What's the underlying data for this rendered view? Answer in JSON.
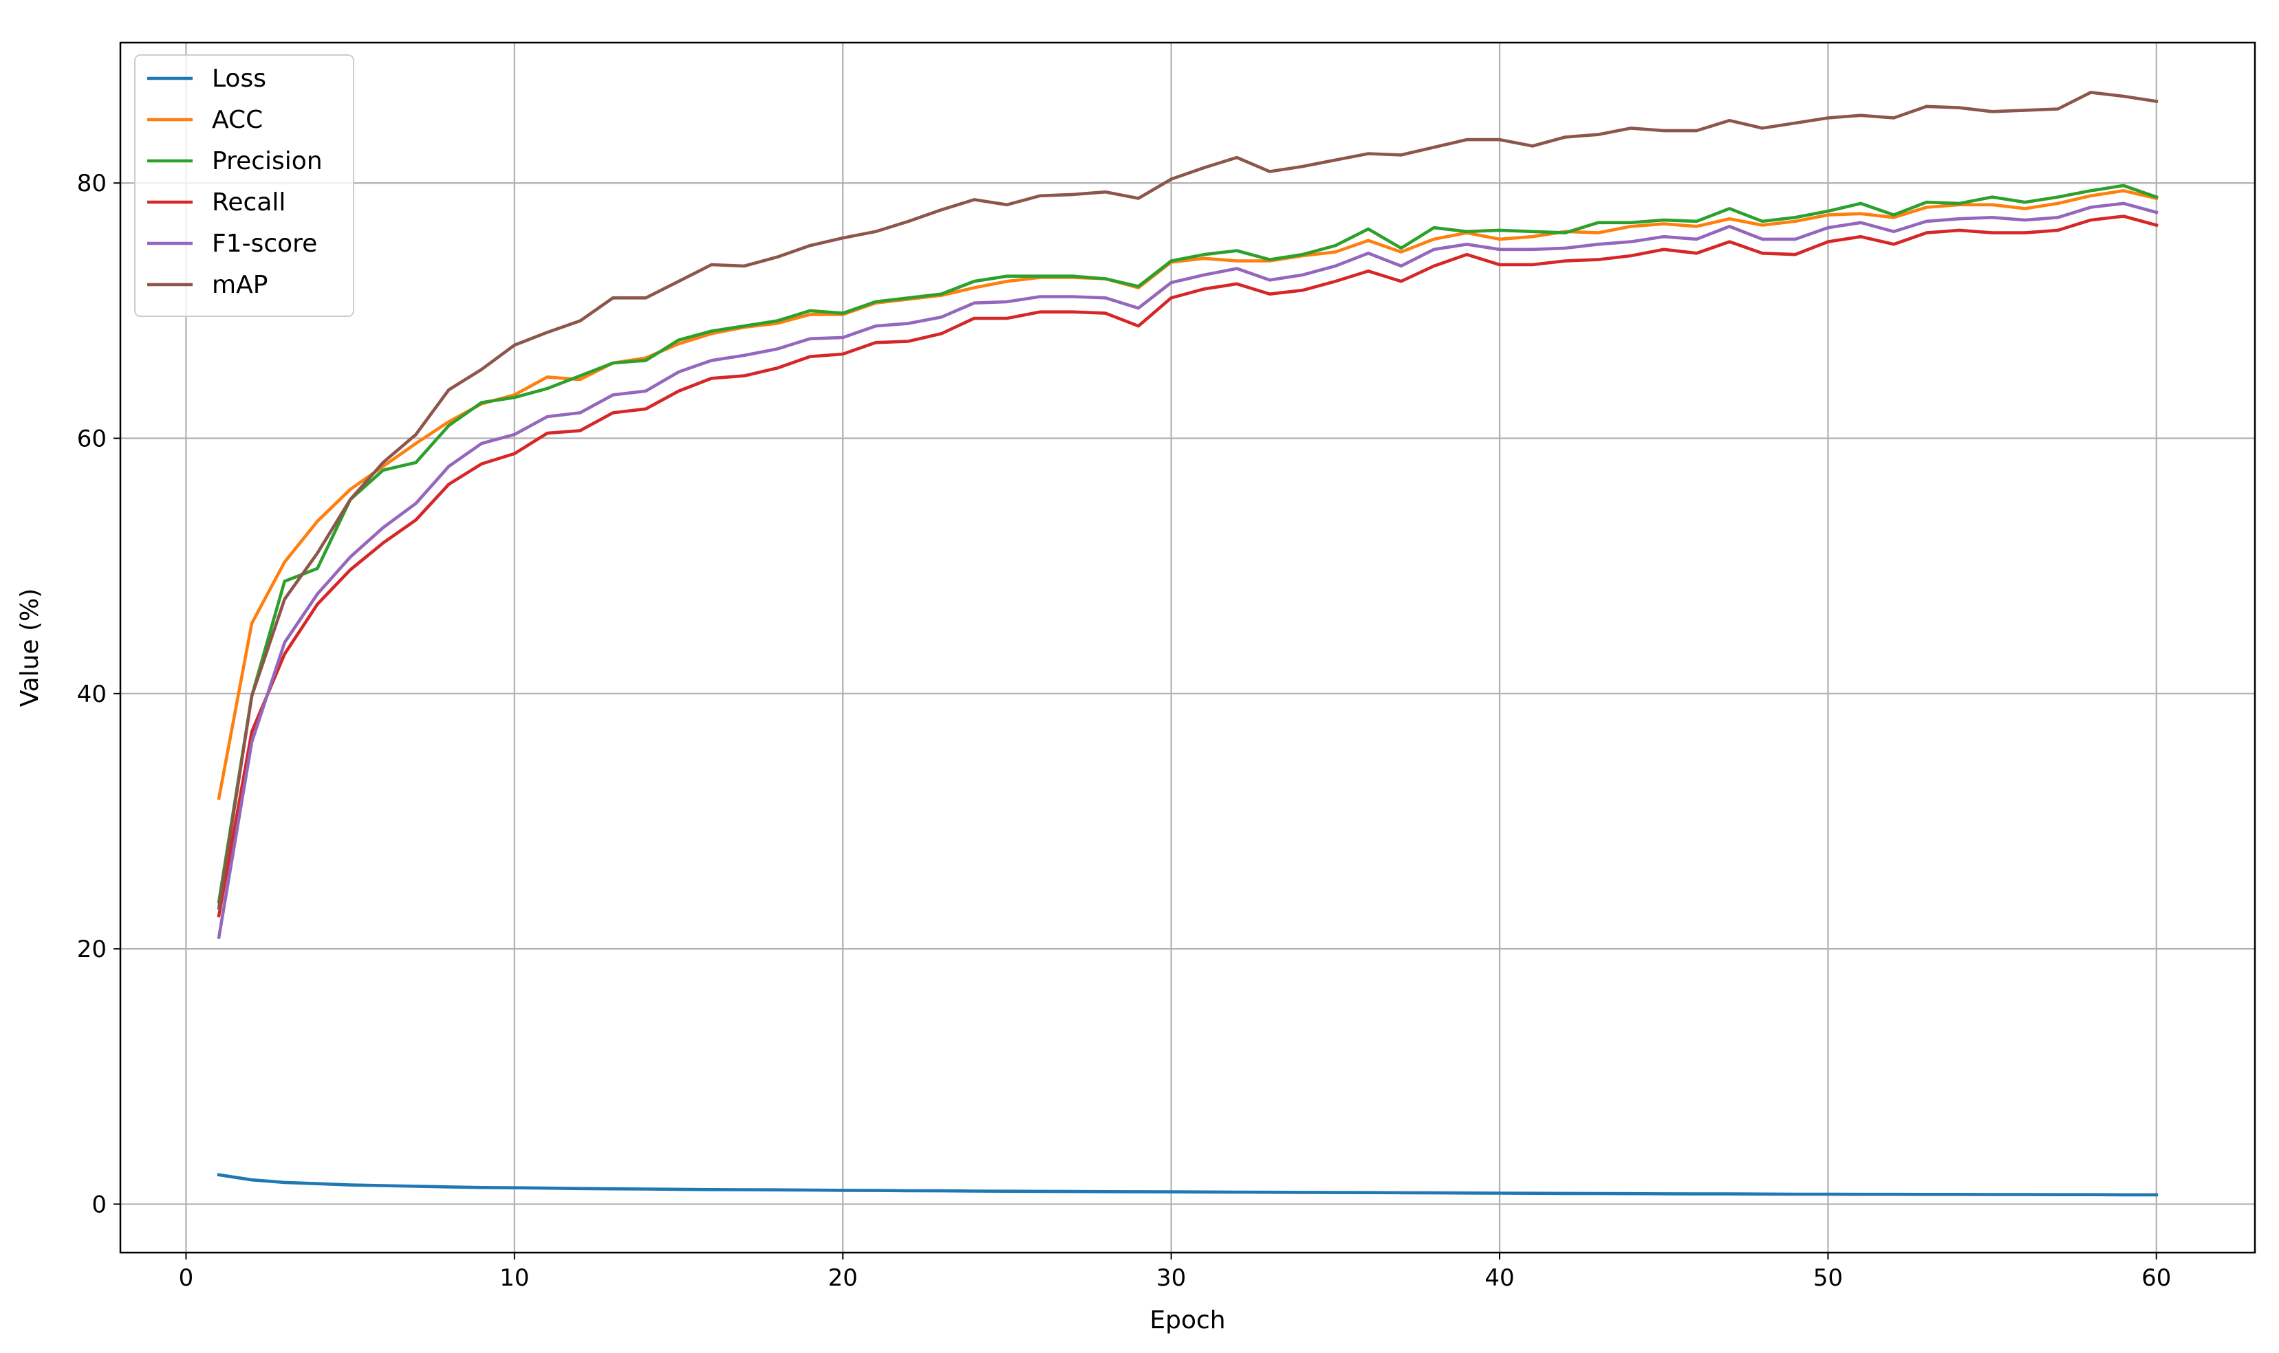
{
  "chart_data": {
    "type": "line",
    "xlabel": "Epoch",
    "ylabel": "Value (%)",
    "xlim": [
      -2,
      63
    ],
    "ylim": [
      -3.8,
      91
    ],
    "x_ticks": [
      0,
      10,
      20,
      30,
      40,
      50,
      60
    ],
    "y_ticks": [
      0,
      20,
      40,
      60,
      80
    ],
    "grid": true,
    "legend_position": "upper-left",
    "x": [
      1,
      2,
      3,
      4,
      5,
      6,
      7,
      8,
      9,
      10,
      11,
      12,
      13,
      14,
      15,
      16,
      17,
      18,
      19,
      20,
      21,
      22,
      23,
      24,
      25,
      26,
      27,
      28,
      29,
      30,
      31,
      32,
      33,
      34,
      35,
      36,
      37,
      38,
      39,
      40,
      41,
      42,
      43,
      44,
      45,
      46,
      47,
      48,
      49,
      50,
      51,
      52,
      53,
      54,
      55,
      56,
      57,
      58,
      59,
      60
    ],
    "series": [
      {
        "name": "Loss",
        "color": "#1f77b4",
        "values": [
          2.3,
          1.9,
          1.7,
          1.6,
          1.5,
          1.45,
          1.4,
          1.35,
          1.3,
          1.28,
          1.25,
          1.22,
          1.2,
          1.18,
          1.16,
          1.14,
          1.13,
          1.12,
          1.1,
          1.08,
          1.07,
          1.05,
          1.04,
          1.02,
          1.01,
          1.0,
          0.99,
          0.98,
          0.97,
          0.96,
          0.95,
          0.94,
          0.93,
          0.92,
          0.91,
          0.9,
          0.89,
          0.88,
          0.87,
          0.86,
          0.85,
          0.84,
          0.83,
          0.82,
          0.81,
          0.8,
          0.8,
          0.79,
          0.78,
          0.78,
          0.77,
          0.77,
          0.76,
          0.76,
          0.75,
          0.75,
          0.74,
          0.74,
          0.73,
          0.73
        ]
      },
      {
        "name": "ACC",
        "color": "#ff7f0e",
        "values": [
          31.8,
          45.5,
          50.3,
          53.5,
          56.0,
          57.8,
          59.6,
          61.3,
          62.7,
          63.4,
          64.8,
          64.6,
          65.9,
          66.3,
          67.4,
          68.2,
          68.7,
          69.0,
          69.7,
          69.7,
          70.6,
          70.9,
          71.2,
          71.8,
          72.3,
          72.6,
          72.6,
          72.5,
          71.8,
          73.8,
          74.1,
          73.9,
          73.9,
          74.3,
          74.6,
          75.5,
          74.6,
          75.6,
          76.1,
          75.6,
          75.8,
          76.2,
          76.1,
          76.6,
          76.8,
          76.6,
          77.2,
          76.7,
          77.0,
          77.5,
          77.6,
          77.3,
          78.1,
          78.3,
          78.3,
          78.0,
          78.4,
          79.0,
          79.4,
          78.8
        ]
      },
      {
        "name": "Precision",
        "color": "#2ca02c",
        "values": [
          23.7,
          39.8,
          48.8,
          49.8,
          55.2,
          57.5,
          58.1,
          61.0,
          62.8,
          63.2,
          63.9,
          64.9,
          65.9,
          66.1,
          67.7,
          68.4,
          68.8,
          69.2,
          70.0,
          69.8,
          70.7,
          71.0,
          71.3,
          72.3,
          72.7,
          72.7,
          72.7,
          72.5,
          71.9,
          73.9,
          74.4,
          74.7,
          74.0,
          74.4,
          75.1,
          76.4,
          74.9,
          76.5,
          76.2,
          76.3,
          76.2,
          76.1,
          76.9,
          76.9,
          77.1,
          77.0,
          78.0,
          77.0,
          77.3,
          77.8,
          78.4,
          77.5,
          78.5,
          78.4,
          78.9,
          78.5,
          78.9,
          79.4,
          79.8,
          78.9
        ]
      },
      {
        "name": "Recall",
        "color": "#d62728",
        "values": [
          22.6,
          37.0,
          43.1,
          47.0,
          49.7,
          51.8,
          53.6,
          56.4,
          58.0,
          58.8,
          60.4,
          60.6,
          62.0,
          62.3,
          63.7,
          64.7,
          64.9,
          65.5,
          66.4,
          66.6,
          67.5,
          67.6,
          68.2,
          69.4,
          69.4,
          69.9,
          69.9,
          69.8,
          68.8,
          71.0,
          71.7,
          72.1,
          71.3,
          71.6,
          72.3,
          73.1,
          72.3,
          73.5,
          74.4,
          73.6,
          73.6,
          73.9,
          74.0,
          74.3,
          74.8,
          74.5,
          75.4,
          74.5,
          74.4,
          75.4,
          75.8,
          75.2,
          76.1,
          76.3,
          76.1,
          76.1,
          76.3,
          77.1,
          77.4,
          76.7
        ]
      },
      {
        "name": "F1-score",
        "color": "#9467bd",
        "values": [
          20.9,
          36.2,
          44.0,
          47.8,
          50.7,
          53.0,
          54.9,
          57.8,
          59.6,
          60.3,
          61.7,
          62.0,
          63.4,
          63.7,
          65.2,
          66.1,
          66.5,
          67.0,
          67.8,
          67.9,
          68.8,
          69.0,
          69.5,
          70.6,
          70.7,
          71.1,
          71.1,
          71.0,
          70.2,
          72.2,
          72.8,
          73.3,
          72.4,
          72.8,
          73.5,
          74.5,
          73.5,
          74.8,
          75.2,
          74.8,
          74.8,
          74.9,
          75.2,
          75.4,
          75.8,
          75.6,
          76.6,
          75.6,
          75.6,
          76.5,
          76.9,
          76.2,
          77.0,
          77.2,
          77.3,
          77.1,
          77.3,
          78.1,
          78.4,
          77.7
        ]
      },
      {
        "name": "mAP",
        "color": "#8c564b",
        "values": [
          23.2,
          39.8,
          47.4,
          51.0,
          55.2,
          58.1,
          60.3,
          63.8,
          65.4,
          67.3,
          68.3,
          69.2,
          71.0,
          71.0,
          72.3,
          73.6,
          73.5,
          74.2,
          75.1,
          75.7,
          76.2,
          77.0,
          77.9,
          78.7,
          78.3,
          79.0,
          79.1,
          79.3,
          78.8,
          80.3,
          81.2,
          82.0,
          80.9,
          81.3,
          81.8,
          82.3,
          82.2,
          82.8,
          83.4,
          83.4,
          82.9,
          83.6,
          83.8,
          84.3,
          84.1,
          84.1,
          84.9,
          84.3,
          84.7,
          85.1,
          85.3,
          85.1,
          86.0,
          85.9,
          85.6,
          85.7,
          85.8,
          87.1,
          86.8,
          86.4
        ]
      }
    ]
  }
}
